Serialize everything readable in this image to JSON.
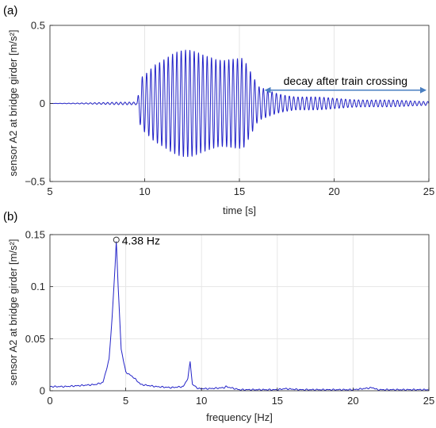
{
  "colors": {
    "signal": "#2323c8",
    "arrow": "#4a7fc1",
    "grid": "#e6e6e6",
    "axis": "#262626"
  },
  "chart_data": [
    {
      "panel": "(a)",
      "type": "line",
      "xlabel": "time [s]",
      "ylabel": "sensor A2 at bridge girder [m/s²]",
      "xlim": [
        5,
        25
      ],
      "ylim": [
        -0.5,
        0.5
      ],
      "xticks": [
        5,
        10,
        15,
        20,
        25
      ],
      "yticks": [
        -0.5,
        0,
        0.5
      ],
      "ytick_labels": [
        "−0.5",
        "0",
        "0.5"
      ],
      "grid": true,
      "series": [
        {
          "x": [
            5,
            9.6,
            9.8,
            10.5,
            11.5,
            12.5,
            13.5,
            14.5,
            15.2,
            15.6,
            16.0,
            17.0,
            18.0,
            20.0,
            22.0,
            25.0
          ],
          "amplitude": [
            0,
            0.01,
            0.2,
            0.3,
            0.33,
            0.35,
            0.36,
            0.33,
            0.3,
            0.2,
            0.11,
            0.075,
            0.05,
            0.035,
            0.025,
            0.015
          ],
          "frequency_hz": 4.38
        }
      ],
      "annotations": [
        {
          "text": "decay after train crossing",
          "x_from": 16.2,
          "x_to": 25.0,
          "y": 0.085
        }
      ]
    },
    {
      "panel": "(b)",
      "type": "line",
      "xlabel": "frequency [Hz]",
      "ylabel": "sensor A2 at bridge girder [m/s²]",
      "xlim": [
        0,
        25
      ],
      "ylim": [
        0,
        0.15
      ],
      "xticks": [
        0,
        5,
        10,
        15,
        20,
        25
      ],
      "yticks": [
        0,
        0.05,
        0.1,
        0.15
      ],
      "ytick_labels": [
        "0",
        "0.05",
        "0.1",
        "0.15"
      ],
      "grid": true,
      "series": [
        {
          "x": [
            0,
            1,
            2,
            3,
            3.5,
            3.9,
            4.1,
            4.3,
            4.38,
            4.5,
            4.7,
            5.0,
            5.5,
            6.0,
            7.0,
            8.0,
            8.8,
            9.1,
            9.25,
            9.4,
            9.8,
            10.5,
            11.5,
            11.6,
            12.5,
            15.0,
            15.5,
            16.5,
            20.0,
            21.3,
            21.6,
            23.0,
            25.0
          ],
          "y": [
            0.004,
            0.004,
            0.005,
            0.006,
            0.008,
            0.03,
            0.07,
            0.12,
            0.145,
            0.1,
            0.04,
            0.018,
            0.013,
            0.006,
            0.004,
            0.003,
            0.004,
            0.012,
            0.028,
            0.006,
            0.002,
            0.002,
            0.003,
            0.004,
            0.001,
            0.001,
            0.002,
            0.001,
            0.001,
            0.003,
            0.001,
            0.001,
            0.001
          ]
        }
      ],
      "annotations": [
        {
          "text": "4.38 Hz",
          "x": 4.38,
          "y": 0.145
        }
      ]
    }
  ]
}
